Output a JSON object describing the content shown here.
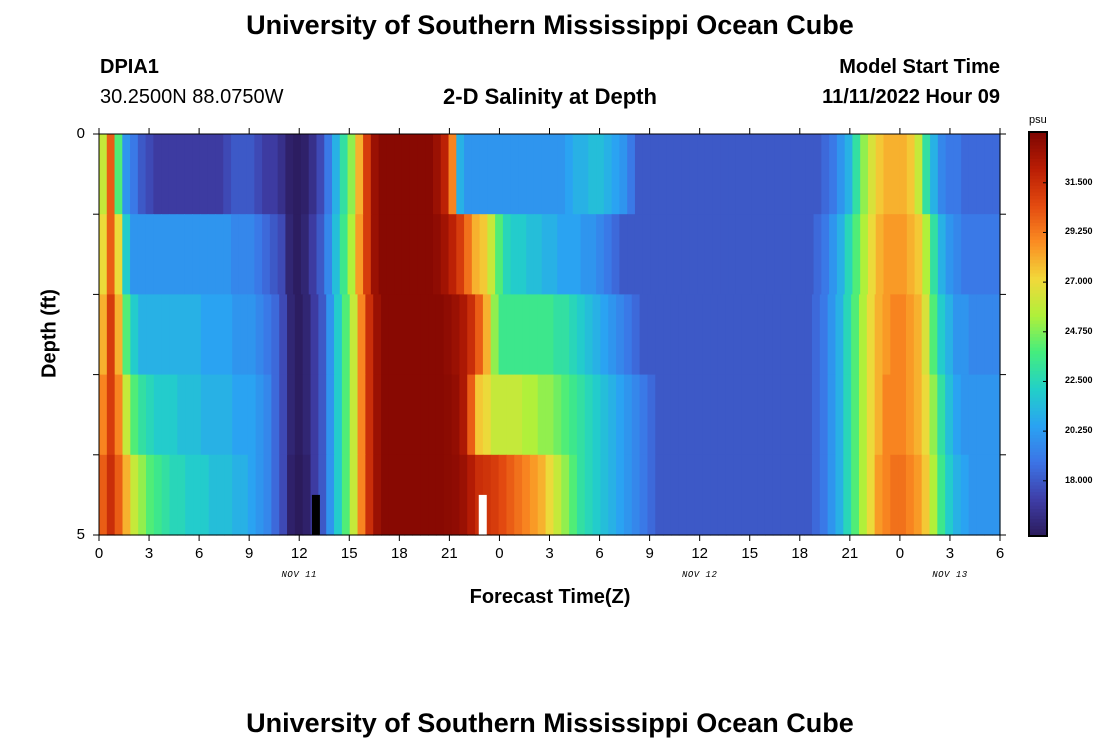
{
  "header": {
    "title_top": "University of Southern Mississippi Ocean Cube",
    "title_bottom": "University of Southern Mississippi Ocean Cube",
    "station": "DPIA1",
    "coords": "30.2500N  88.0750W",
    "subtitle": "2-D Salinity at Depth",
    "model_label": "Model Start Time",
    "model_time": "11/11/2022 Hour 09"
  },
  "chart_data": {
    "type": "heatmap",
    "title": "2-D Salinity at Depth",
    "xlabel": "Forecast Time(Z)",
    "ylabel": "Depth (ft)",
    "x_hours_range": [
      0,
      54
    ],
    "ylim": [
      0,
      5
    ],
    "x_tick_labels": [
      "0",
      "3",
      "6",
      "9",
      "12",
      "15",
      "18",
      "21",
      "0",
      "3",
      "6",
      "9",
      "12",
      "15",
      "18",
      "21",
      "0",
      "3",
      "6"
    ],
    "y_tick_labels": [
      "0",
      "5"
    ],
    "date_labels": [
      {
        "text": "NOV 11",
        "hour": 12
      },
      {
        "text": "NOV 12",
        "hour": 36
      },
      {
        "text": "NOV 13",
        "hour": 51
      }
    ],
    "colorbar": {
      "unit": "psu",
      "min": 15.5,
      "max": 33.8,
      "tick_values": [
        18.0,
        20.25,
        22.5,
        24.75,
        27.0,
        29.25,
        31.5
      ],
      "tick_labels": [
        "18.000",
        "20.250",
        "22.500",
        "24.750",
        "27.000",
        "29.250",
        "31.500"
      ],
      "colors": [
        "#2b1b5c",
        "#3f3ea8",
        "#3c74e6",
        "#2aa3f2",
        "#22d0c8",
        "#44ed7e",
        "#b0f03a",
        "#f2d83a",
        "#fb8c22",
        "#e34a10",
        "#b91d04",
        "#7d0502"
      ]
    },
    "depth_layers": [
      0,
      1,
      2,
      3,
      4,
      5
    ],
    "rows": [
      [
        26,
        30,
        24,
        20,
        19,
        18,
        17.5,
        17,
        17,
        17,
        17,
        17,
        17,
        17,
        17,
        17,
        17.5,
        18,
        18,
        18,
        17.5,
        17,
        17,
        16.5,
        15.8,
        15.6,
        15.8,
        16.5,
        17.5,
        19,
        21,
        23,
        25,
        28,
        31,
        33,
        33.5,
        33.5,
        33.5,
        33.5,
        33.5,
        33.5,
        33.5,
        33,
        32,
        29,
        21,
        20,
        20,
        20,
        20,
        20,
        20,
        20,
        20,
        20,
        20,
        20,
        20,
        20,
        20.5,
        21,
        21,
        21.5,
        21.5,
        21,
        20.5,
        20,
        19,
        18,
        18,
        18,
        18,
        18,
        18,
        18,
        18,
        18,
        18,
        18,
        18,
        18,
        18,
        18,
        18,
        18,
        18,
        18,
        18,
        18,
        18,
        18,
        18,
        18.5,
        19,
        20,
        21,
        23,
        25,
        26.5,
        27.5,
        28,
        28,
        28,
        27.5,
        26,
        23,
        21,
        19.5,
        19,
        19,
        18.5,
        18.5,
        18.5,
        18.5,
        18.5
      ],
      [
        27,
        30,
        27,
        22,
        20,
        20,
        20,
        20,
        20,
        20,
        20,
        20,
        20,
        20,
        20,
        20,
        20,
        19.5,
        19.5,
        19.5,
        19,
        18.5,
        18,
        17.5,
        16,
        15.6,
        16,
        17,
        18,
        19.5,
        21.5,
        23.5,
        25.5,
        28.5,
        31,
        33,
        33.5,
        33.5,
        33.5,
        33.5,
        33.5,
        33.5,
        33.5,
        33.3,
        32.8,
        32,
        31,
        29.5,
        28,
        27.5,
        26,
        24,
        22.5,
        22,
        22,
        21.5,
        21.5,
        21,
        21,
        20.5,
        20.5,
        20.5,
        20,
        20,
        19.5,
        19,
        18.5,
        18,
        18,
        18,
        18,
        18,
        18,
        18,
        18,
        18,
        18,
        18,
        18,
        18,
        18,
        18,
        18,
        18,
        18,
        18,
        18,
        18,
        18,
        18,
        18,
        18,
        18.5,
        19,
        20,
        21,
        22.5,
        24,
        25.5,
        27,
        28,
        28.5,
        28.5,
        28.5,
        28,
        27.5,
        25.5,
        23,
        21,
        20,
        19.5,
        19,
        19,
        19,
        19,
        19
      ],
      [
        28,
        31,
        28,
        24,
        22,
        21,
        21,
        21,
        21,
        21,
        21,
        21,
        21,
        20.5,
        20.5,
        20.5,
        20.5,
        20,
        20,
        20,
        19.5,
        19,
        18.5,
        17.5,
        16,
        15.6,
        16,
        17,
        18,
        20,
        22,
        24,
        26,
        29,
        31.5,
        33,
        33.5,
        33.5,
        33.5,
        33.5,
        33.5,
        33.5,
        33.5,
        33.5,
        33.3,
        33,
        32.5,
        31.5,
        30,
        28,
        25,
        23.5,
        23.5,
        23.5,
        23.5,
        23.5,
        23.5,
        23.5,
        23,
        23,
        22.5,
        22,
        21.5,
        21,
        20.5,
        20,
        19.5,
        19,
        18.5,
        18,
        18,
        18,
        18,
        18,
        18,
        18,
        18,
        18,
        18,
        18,
        18,
        18,
        18,
        18,
        18,
        18,
        18,
        18,
        18,
        18,
        18,
        18.5,
        19,
        20,
        21,
        22.5,
        24,
        25.5,
        27,
        28,
        28.5,
        29,
        29,
        28.5,
        28,
        26.5,
        24,
        22,
        21,
        20,
        20,
        19.5,
        19.5,
        19.5,
        19.5
      ],
      [
        29,
        31,
        29,
        26,
        24,
        23,
        22.5,
        22,
        22,
        22,
        21.5,
        21.5,
        21.5,
        21,
        21,
        21,
        21,
        20.5,
        20.5,
        20.5,
        20,
        19.5,
        18.5,
        17.5,
        16,
        15.6,
        16,
        17,
        18,
        20,
        22,
        24,
        26,
        29,
        31.5,
        33,
        33.5,
        33.5,
        33.5,
        33.5,
        33.5,
        33.5,
        33.5,
        33.5,
        33.4,
        33.2,
        32.5,
        30,
        27.5,
        27,
        26,
        26,
        26,
        26,
        25.5,
        25.5,
        25,
        25,
        24.5,
        24,
        23.5,
        23,
        22.5,
        22,
        21.5,
        21,
        20.5,
        20,
        19.5,
        19,
        18.5,
        18,
        18,
        18,
        18,
        18,
        18,
        18,
        18,
        18,
        18,
        18,
        18,
        18,
        18,
        18,
        18,
        18,
        18,
        18,
        18,
        18.5,
        19,
        20,
        21,
        22.5,
        24,
        25.5,
        27,
        28,
        29,
        29,
        29,
        28.5,
        28,
        27,
        25,
        23,
        21.5,
        20.5,
        20,
        20,
        20,
        20,
        20
      ],
      [
        30,
        31.5,
        30,
        28,
        26,
        25,
        24,
        23.5,
        23,
        22.5,
        22.5,
        22,
        22,
        22,
        21.5,
        21.5,
        21.5,
        21,
        21,
        20.5,
        20,
        19.5,
        18.5,
        17.5,
        15.8,
        15.5,
        15.8,
        17,
        18,
        20,
        22,
        24,
        26,
        29,
        31.5,
        33,
        33.5,
        33.5,
        33.5,
        33.5,
        33.5,
        33.5,
        33.5,
        33.5,
        33.4,
        33.3,
        33,
        32.3,
        31.5,
        31.3,
        31,
        30.5,
        30,
        29.5,
        29,
        28.5,
        28,
        27,
        26,
        25,
        24,
        23,
        22.5,
        22,
        21.5,
        21,
        20.5,
        20,
        19.5,
        19,
        18.5,
        18,
        18,
        18,
        18,
        18,
        18,
        18,
        18,
        18,
        18,
        18,
        18,
        18,
        18,
        18,
        18,
        18,
        18,
        18,
        18,
        18.5,
        19,
        20,
        21,
        22.5,
        24,
        25.5,
        27,
        28.5,
        29,
        29.5,
        29.5,
        29,
        28.5,
        27.5,
        25.5,
        23.5,
        22,
        21,
        20.5,
        20,
        20,
        20,
        20
      ],
      [
        31,
        32,
        31,
        29,
        27,
        26,
        25,
        24,
        23.5,
        23,
        23,
        22.5,
        22.5,
        22,
        22,
        22,
        21.5,
        21.5,
        21,
        20.5,
        20,
        19.5,
        18.5,
        17.5,
        15.8,
        15.5,
        15.8,
        17,
        18,
        20,
        22,
        24,
        26,
        29,
        31.5,
        33,
        33.5,
        33.5,
        33.5,
        33.5,
        33.5,
        33.5,
        33.5,
        33.5,
        33.5,
        33.3,
        33,
        32.8,
        32.5,
        32.2,
        32,
        31.5,
        31,
        30.5,
        30,
        29,
        28,
        27,
        26,
        25,
        24,
        23,
        22.5,
        22,
        21.5,
        21,
        20.5,
        20,
        19.5,
        19,
        18.5,
        18,
        18,
        18,
        18,
        18,
        18,
        18,
        18,
        18,
        18,
        18,
        18,
        18,
        18,
        18,
        18,
        18,
        18,
        18,
        18,
        18.5,
        19,
        20,
        21,
        22.5,
        24,
        25.5,
        27,
        28.5,
        29.5,
        30,
        30,
        29.5,
        29,
        28,
        26,
        24,
        22.5,
        21,
        20.5,
        20,
        20,
        20,
        20
      ]
    ],
    "markers": [
      {
        "hour": 13,
        "depth_top": 4.5,
        "depth_bottom": 5,
        "color": "#000000"
      },
      {
        "hour": 23,
        "depth_top": 4.5,
        "depth_bottom": 5,
        "color": "#ffffff"
      }
    ]
  }
}
